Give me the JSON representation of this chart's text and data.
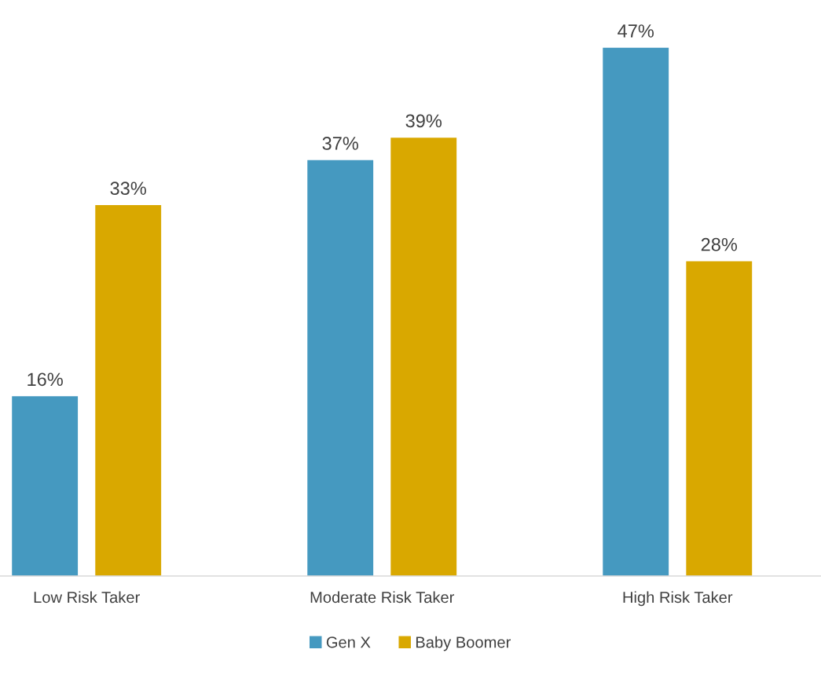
{
  "chart_data": {
    "type": "bar",
    "categories": [
      "Low Risk Taker",
      "Moderate Risk Taker",
      "High Risk Taker"
    ],
    "series": [
      {
        "name": "Gen X",
        "color": "#4599c0",
        "values": [
          16,
          37,
          47
        ],
        "value_labels": [
          "16%",
          "37%",
          "47%"
        ]
      },
      {
        "name": "Baby Boomer",
        "color": "#d9a800",
        "values": [
          33,
          39,
          28
        ],
        "value_labels": [
          "33%",
          "39%",
          "28%"
        ]
      }
    ],
    "tick_labels": "x",
    "grid": false,
    "legend": "bottom"
  }
}
